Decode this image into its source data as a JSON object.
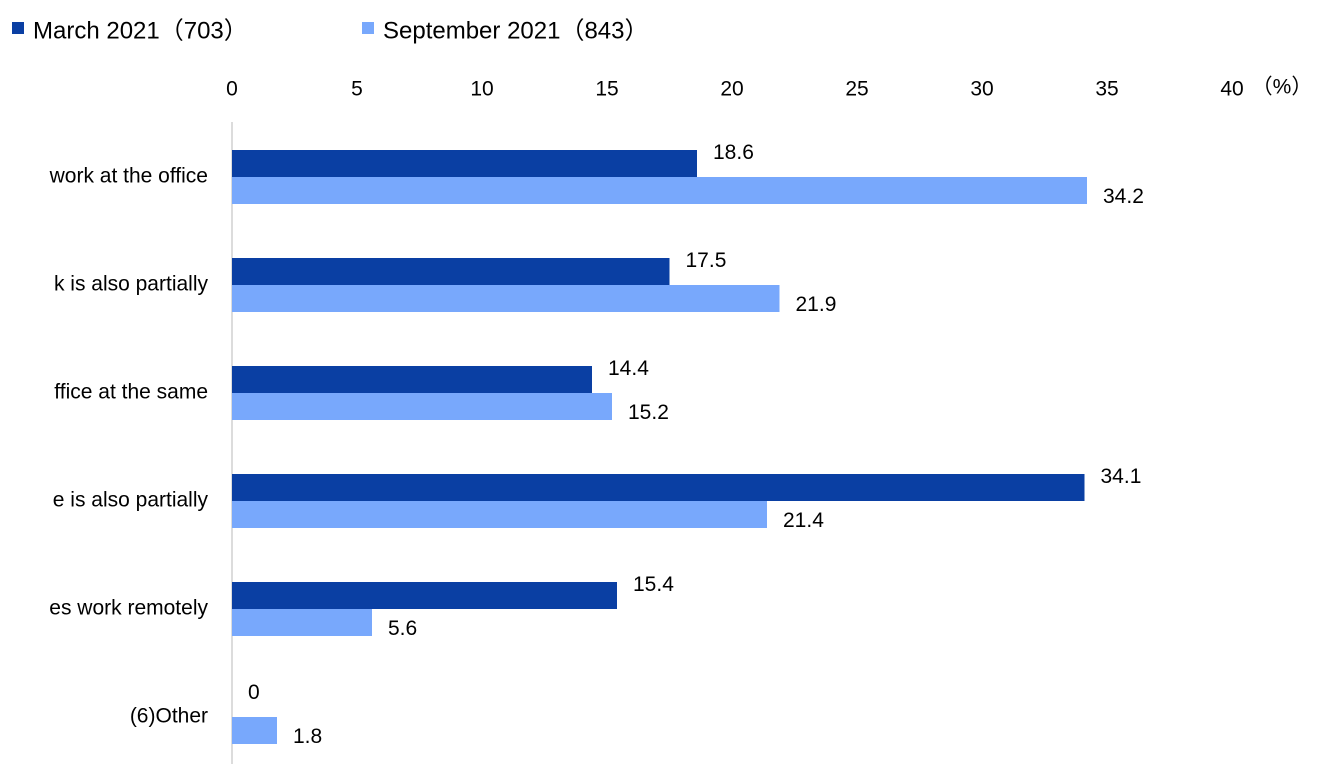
{
  "chart_data": {
    "type": "barh",
    "xlabel": "（%）",
    "categories": [
      "work at the office",
      "k is also partially",
      "ffice at the same",
      "e is also partially",
      "es work remotely",
      "(6)Other"
    ],
    "series": [
      {
        "name": "March 2021（703）",
        "color": "#0a3fa3",
        "values": [
          18.6,
          17.5,
          14.4,
          34.1,
          15.4,
          0
        ]
      },
      {
        "name": "September 2021（843）",
        "color": "#78a8fc",
        "values": [
          34.2,
          21.9,
          15.2,
          21.4,
          5.6,
          1.8
        ]
      }
    ],
    "xlim": [
      0,
      40
    ],
    "xticks": [
      0,
      5,
      10,
      15,
      20,
      25,
      30,
      35,
      40
    ],
    "grid": false,
    "legend": "top-left"
  }
}
